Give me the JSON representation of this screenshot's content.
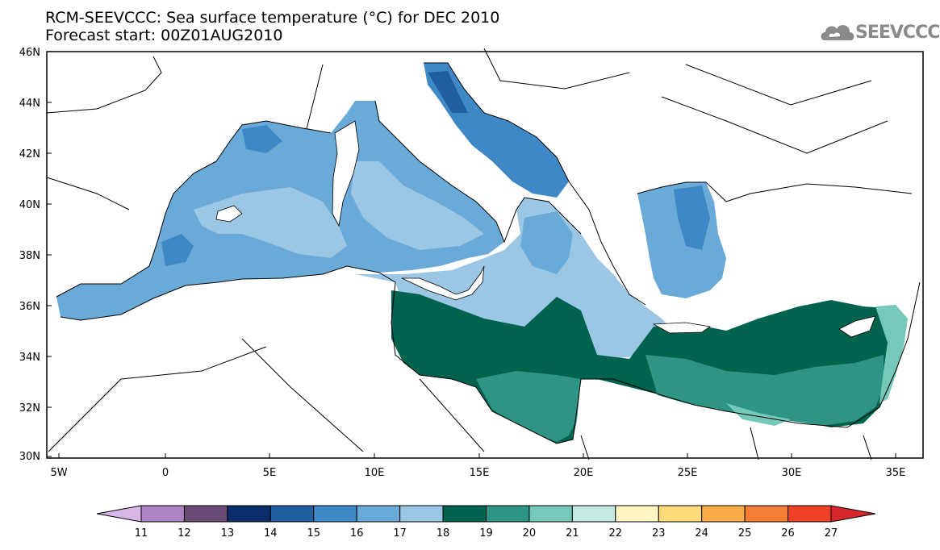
{
  "title": {
    "line1": "RCM-SEEVCCC: Sea surface temperature (°C) for DEC 2010",
    "line2": "Forecast start: 00Z01AUG2010"
  },
  "logo": {
    "text": "SEEVCCC",
    "icon": "cloud-icon",
    "color": "#8a8a8a"
  },
  "map": {
    "lat_ticks": [
      "46N",
      "44N",
      "42N",
      "40N",
      "38N",
      "36N",
      "34N",
      "32N",
      "30N"
    ],
    "lon_ticks": [
      "5W",
      "0",
      "5E",
      "10E",
      "15E",
      "20E",
      "25E",
      "30E",
      "35E"
    ],
    "lon_range": [
      -5.5,
      36.5
    ],
    "lat_range": [
      30,
      46
    ]
  },
  "colorbar": {
    "labels": [
      "11",
      "12",
      "13",
      "14",
      "15",
      "16",
      "17",
      "18",
      "19",
      "20",
      "21",
      "22",
      "23",
      "24",
      "25",
      "26",
      "27"
    ],
    "colors": [
      "#d8b6e6",
      "#ad84c3",
      "#684b72",
      "#0b2e6a",
      "#1f5f9e",
      "#3f88c6",
      "#6aaad8",
      "#9bc6e4",
      "#00634e",
      "#2e9483",
      "#76c9b8",
      "#c3e9e1",
      "#fdf6c4",
      "#fedc7c",
      "#f9ac48",
      "#f47e33",
      "#ee4128",
      "#d8272b"
    ]
  }
}
